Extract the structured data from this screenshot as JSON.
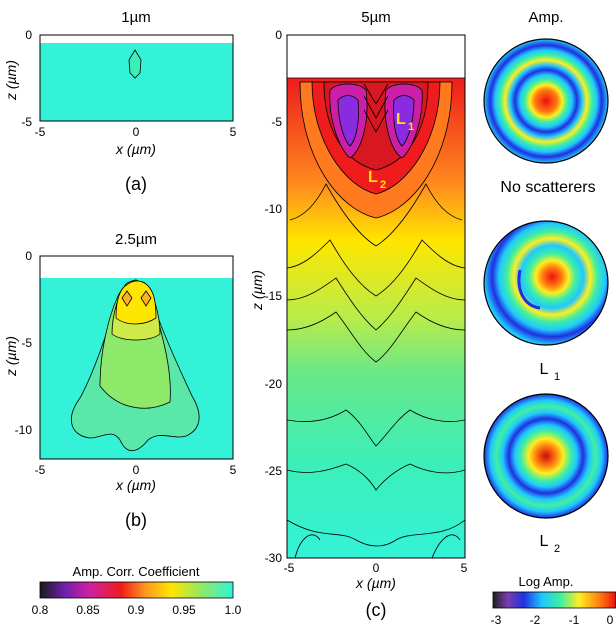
{
  "panel_a": {
    "title": "1µm",
    "z_axis_label": "z (µm)",
    "x_axis_label": "x (µm)",
    "x_ticks": [
      "-5",
      "0",
      "5"
    ],
    "z_ticks": [
      "0",
      "-5"
    ],
    "caption": "(a)"
  },
  "panel_b": {
    "title": "2.5µm",
    "z_axis_label": "z (µm)",
    "x_axis_label": "x (µm)",
    "x_ticks": [
      "-5",
      "0",
      "5"
    ],
    "z_ticks": [
      "0",
      "-5",
      "-10"
    ],
    "caption": "(b)"
  },
  "panel_c": {
    "title": "5µm",
    "z_axis_label": "z (µm)",
    "x_axis_label": "x (µm)",
    "x_ticks": [
      "-5",
      "0",
      "5"
    ],
    "z_ticks": [
      "0",
      "-5",
      "-10",
      "-15",
      "-20",
      "-25",
      "-30"
    ],
    "caption": "(c)",
    "marker_l1": "L",
    "marker_l1_sub": "1",
    "marker_l2": "L",
    "marker_l2_sub": "2"
  },
  "amp_column": {
    "title": "Amp.",
    "label_1": "No scatterers",
    "label_2_main": "L",
    "label_2_sub": "1",
    "label_3_main": "L",
    "label_3_sub": "2"
  },
  "colorbar_corr": {
    "title": "Amp. Corr. Coefficient",
    "ticks": [
      "0.8",
      "0.85",
      "0.9",
      "0.95",
      "1.0"
    ]
  },
  "colorbar_log": {
    "title": "Log Amp.",
    "ticks": [
      "-3",
      "-2",
      "-1",
      "0"
    ]
  },
  "colors": {
    "cyan": "#33f2d8",
    "green": "#66e88a",
    "yellow": "#ffe600",
    "orange": "#ff9a1f",
    "red": "#ee1c1c",
    "magenta": "#cc1fa8",
    "purple": "#8a2be2"
  }
}
